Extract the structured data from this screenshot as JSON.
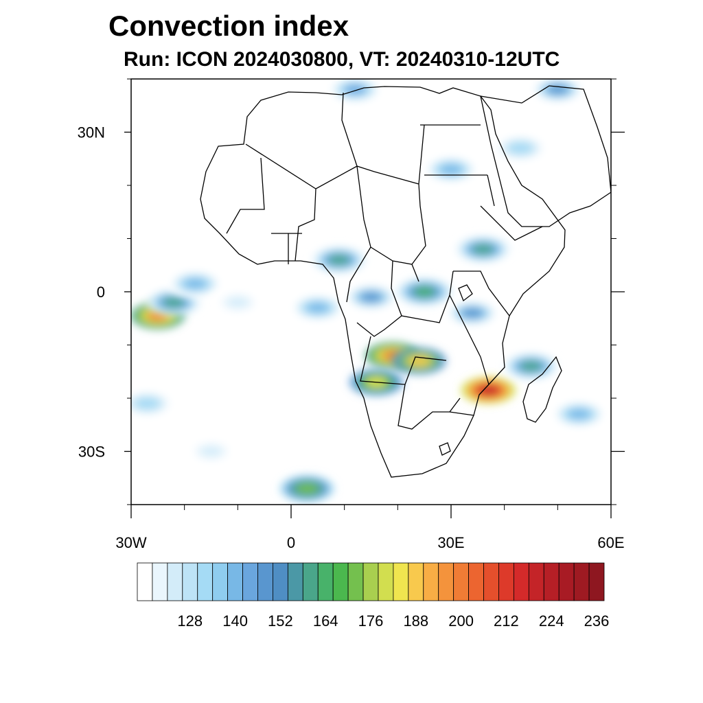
{
  "title": "Convection index",
  "subtitle": "Run: ICON 2024030800,  VT: 20240310-12UTC",
  "map": {
    "region": "Africa",
    "projection": "cylindrical equidistant",
    "lon_range": [
      -30,
      60
    ],
    "lat_range": [
      -40,
      40
    ],
    "lat_ticks": [
      {
        "value": 30,
        "label": "30N"
      },
      {
        "value": 0,
        "label": "0"
      },
      {
        "value": -30,
        "label": "30S"
      }
    ],
    "lon_ticks": [
      {
        "value": -30,
        "label": "30W"
      },
      {
        "value": 0,
        "label": "0"
      },
      {
        "value": 30,
        "label": "30E"
      },
      {
        "value": 60,
        "label": "60E"
      }
    ],
    "regions": [
      {
        "lon": -25,
        "lat": -4.5,
        "level": 200
      },
      {
        "lon": -22,
        "lat": -2,
        "level": 160
      },
      {
        "lon": -18,
        "lat": 1.5,
        "level": 140
      },
      {
        "lon": -10,
        "lat": -2,
        "level": 125
      },
      {
        "lon": 5,
        "lat": -3,
        "level": 140
      },
      {
        "lon": 9,
        "lat": 6,
        "level": 160
      },
      {
        "lon": 15,
        "lat": -1,
        "level": 150
      },
      {
        "lon": 25,
        "lat": 0,
        "level": 165
      },
      {
        "lon": 34,
        "lat": -4,
        "level": 150
      },
      {
        "lon": 19,
        "lat": -12,
        "level": 200
      },
      {
        "lon": 24,
        "lat": -13,
        "level": 190
      },
      {
        "lon": 16,
        "lat": -17,
        "level": 185
      },
      {
        "lon": 37,
        "lat": -18.5,
        "level": 220
      },
      {
        "lon": 45,
        "lat": -14,
        "level": 160
      },
      {
        "lon": 54,
        "lat": -23,
        "level": 140
      },
      {
        "lon": 3,
        "lat": -37,
        "level": 175
      },
      {
        "lon": -15,
        "lat": -30,
        "level": 125
      },
      {
        "lon": -27,
        "lat": -21,
        "level": 135
      },
      {
        "lon": 36,
        "lat": 8,
        "level": 160
      },
      {
        "lon": 30,
        "lat": 23,
        "level": 140
      },
      {
        "lon": 43,
        "lat": 27,
        "level": 135
      },
      {
        "lon": 12,
        "lat": 38,
        "level": 145
      },
      {
        "lon": 50,
        "lat": 38,
        "level": 150
      }
    ]
  },
  "colorbar": {
    "levels": [
      116,
      120,
      124,
      128,
      132,
      136,
      140,
      144,
      148,
      152,
      156,
      160,
      164,
      168,
      172,
      176,
      180,
      184,
      188,
      192,
      196,
      200,
      204,
      208,
      212,
      216,
      220,
      224,
      228,
      232,
      236,
      240
    ],
    "colors": [
      "#ffffff",
      "#eaf6fd",
      "#d3ecf9",
      "#bde3f6",
      "#a5dbf5",
      "#8fcdef",
      "#78b8e6",
      "#6aa6de",
      "#5996cf",
      "#4f8ec4",
      "#4b98a6",
      "#4aa68a",
      "#48b26a",
      "#4bb84e",
      "#74c04e",
      "#a9cf4f",
      "#d2de4f",
      "#f0e54f",
      "#f8c94d",
      "#f8ad45",
      "#f4933c",
      "#f07c35",
      "#ec6530",
      "#e54f2c",
      "#dd3a2a",
      "#d42a2a",
      "#c42428",
      "#b61f26",
      "#a81b24",
      "#9e1a22",
      "#8e1720"
    ],
    "labels": [
      "128",
      "140",
      "152",
      "164",
      "176",
      "188",
      "200",
      "212",
      "224",
      "236"
    ]
  }
}
